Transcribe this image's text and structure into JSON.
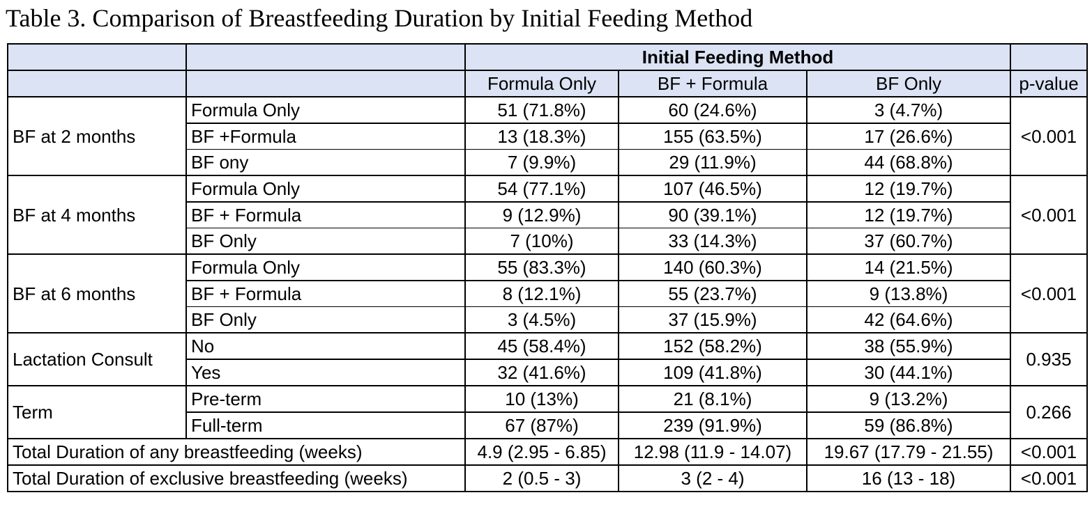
{
  "caption": "Table 3. Comparison of Breastfeeding Duration by Initial Feeding Method",
  "header": {
    "group_label": "Initial Feeding Method",
    "columns": [
      "Formula Only",
      "BF + Formula",
      "BF Only"
    ],
    "pvalue_label": "p-value"
  },
  "groups": [
    {
      "label": "BF at 2 months",
      "pvalue": "<0.001",
      "rows": [
        {
          "sub": "Formula Only",
          "values": [
            "51 (71.8%)",
            "60 (24.6%)",
            "3 (4.7%)"
          ]
        },
        {
          "sub": "BF +Formula",
          "values": [
            "13 (18.3%)",
            "155 (63.5%)",
            "17 (26.6%)"
          ]
        },
        {
          "sub": "BF ony",
          "values": [
            "7 (9.9%)",
            "29 (11.9%)",
            "44 (68.8%)"
          ]
        }
      ]
    },
    {
      "label": "BF at 4 months",
      "pvalue": "<0.001",
      "rows": [
        {
          "sub": "Formula Only",
          "values": [
            "54 (77.1%)",
            "107 (46.5%)",
            "12 (19.7%)"
          ]
        },
        {
          "sub": "BF +  Formula",
          "values": [
            "9 (12.9%)",
            "90 (39.1%)",
            "12 (19.7%)"
          ]
        },
        {
          "sub": "BF Only",
          "values": [
            "7 (10%)",
            "33 (14.3%)",
            "37 (60.7%)"
          ]
        }
      ]
    },
    {
      "label": "BF at 6 months",
      "pvalue": "<0.001",
      "rows": [
        {
          "sub": "Formula Only",
          "values": [
            "55 (83.3%)",
            "140 (60.3%)",
            "14 (21.5%)"
          ]
        },
        {
          "sub": "BF + Formula",
          "values": [
            "8 (12.1%)",
            "55 (23.7%)",
            "9 (13.8%)"
          ]
        },
        {
          "sub": "BF Only",
          "values": [
            "3 (4.5%)",
            "37 (15.9%)",
            "42 (64.6%)"
          ]
        }
      ]
    },
    {
      "label": "Lactation Consult",
      "pvalue": "0.935",
      "rows": [
        {
          "sub": "No",
          "values": [
            "45 (58.4%)",
            "152 (58.2%)",
            "38 (55.9%)"
          ]
        },
        {
          "sub": "Yes",
          "values": [
            "32 (41.6%)",
            "109 (41.8%)",
            "30 (44.1%)"
          ]
        }
      ]
    },
    {
      "label": "Term",
      "pvalue": "0.266",
      "rows": [
        {
          "sub": "Pre-term",
          "values": [
            "10 (13%)",
            "21 (8.1%)",
            "9 (13.2%)"
          ]
        },
        {
          "sub": "Full-term",
          "values": [
            "67 (87%)",
            "239 (91.9%)",
            "59 (86.8%)"
          ]
        }
      ]
    }
  ],
  "totals": [
    {
      "label": "Total Duration of any breastfeeding (weeks)",
      "values": [
        "4.9 (2.95 - 6.85)",
        "12.98 (11.9 - 14.07)",
        "19.67 (17.79 - 21.55)"
      ],
      "pvalue": "<0.001"
    },
    {
      "label": "Total Duration of exclusive breastfeeding (weeks)",
      "values": [
        "2 (0.5 - 3)",
        "3 (2 - 4)",
        "16 (13 - 18)"
      ],
      "pvalue": "<0.001"
    }
  ],
  "colors": {
    "header_fill": "#dbe3f4",
    "border": "#000000"
  }
}
